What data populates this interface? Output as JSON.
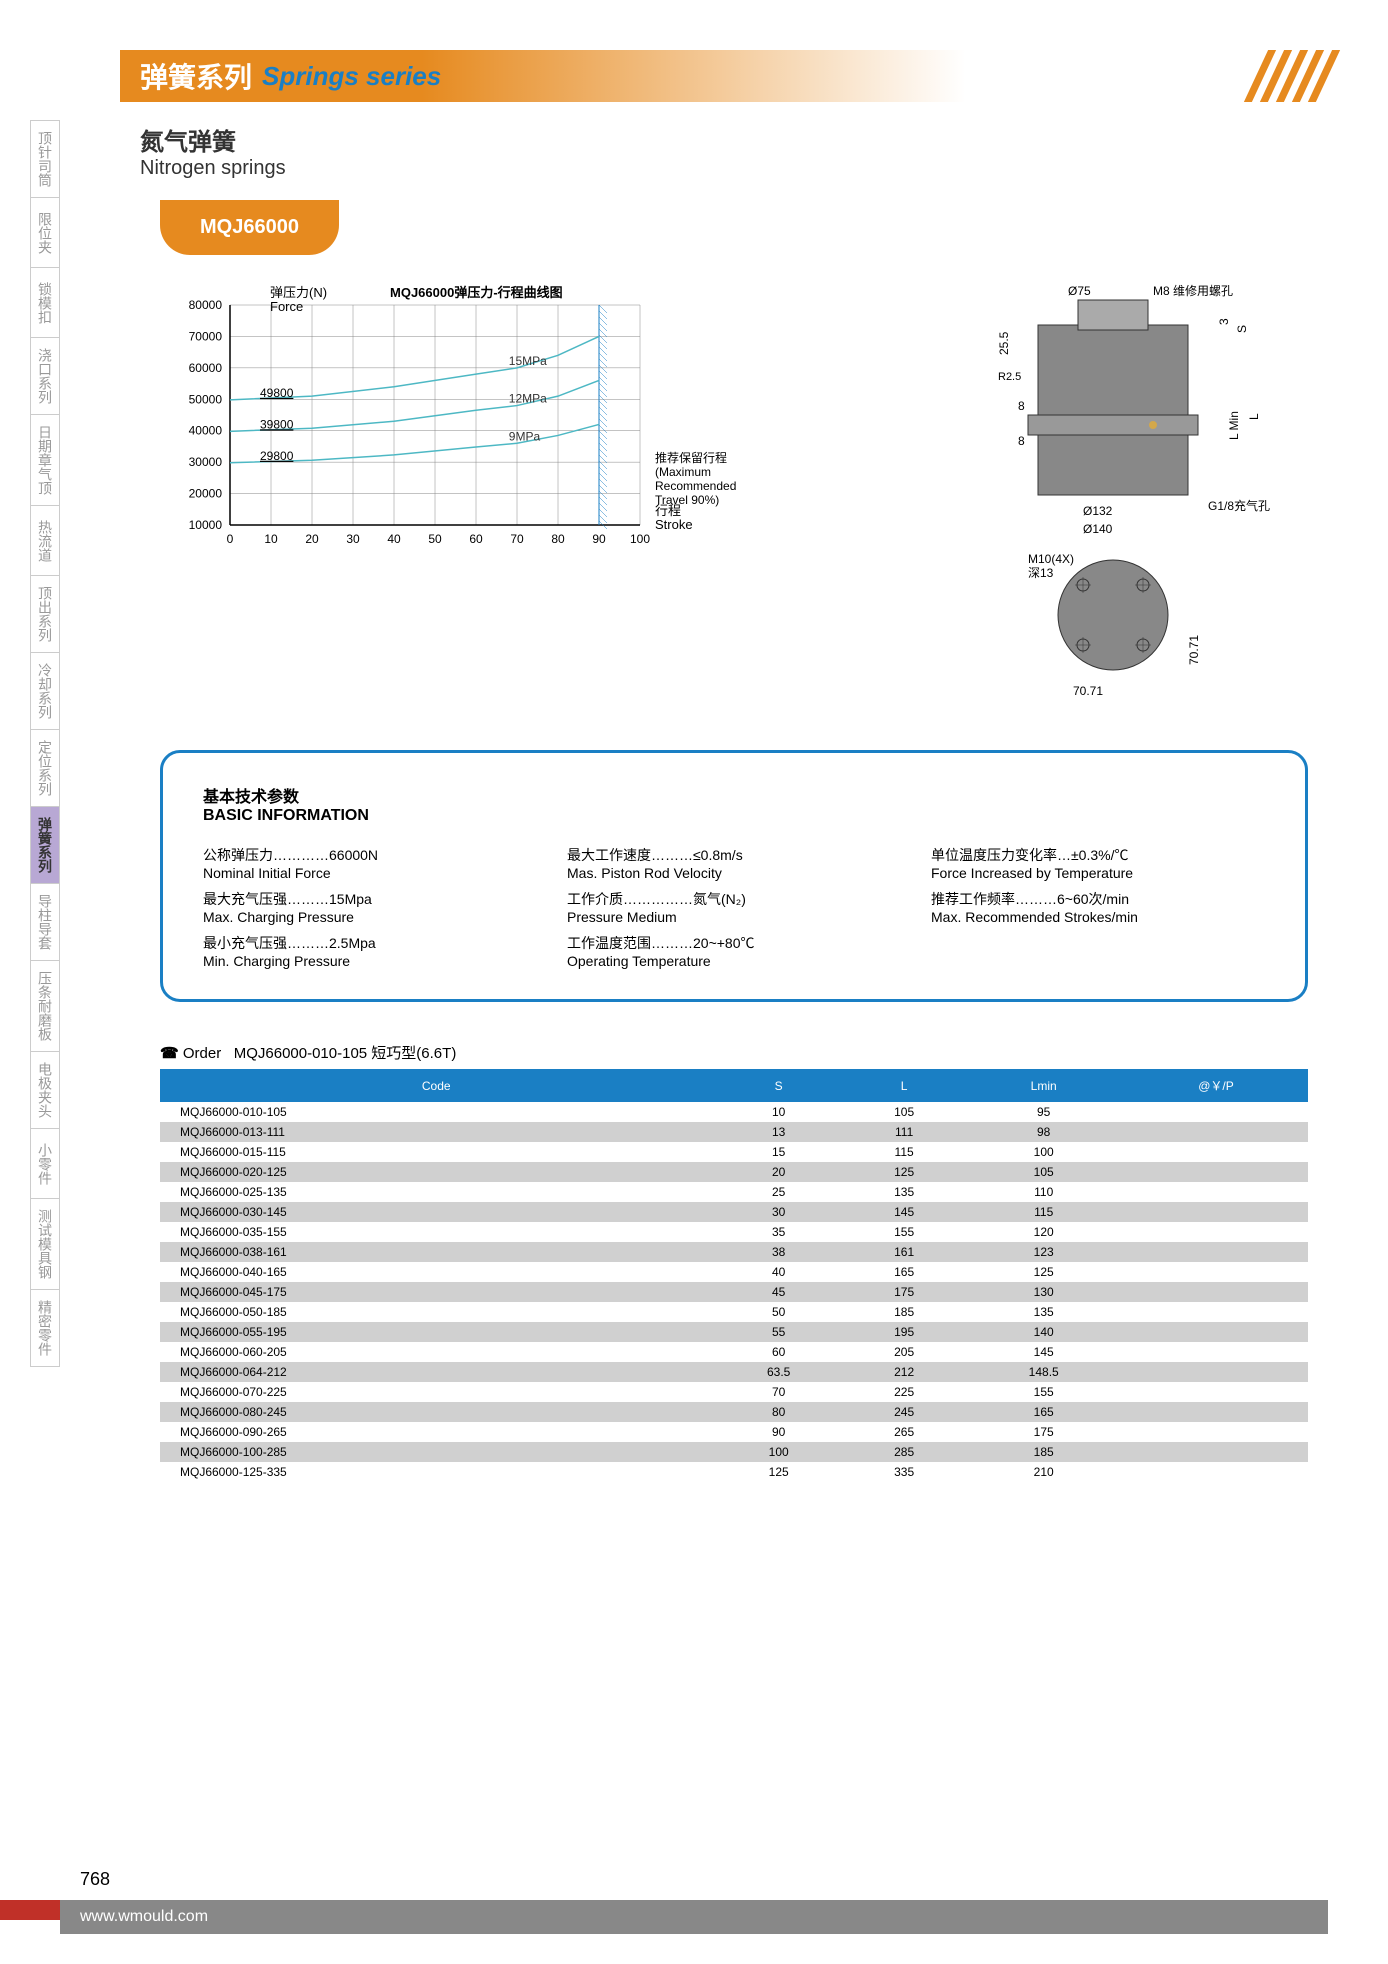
{
  "header": {
    "title_zh": "弹簧系列",
    "title_en": "Springs series"
  },
  "sidebar": {
    "items": [
      {
        "zh": "顶针司筒"
      },
      {
        "zh": "限位夹"
      },
      {
        "zh": "锁模扣"
      },
      {
        "zh": "浇口系列"
      },
      {
        "zh": "日期章气顶"
      },
      {
        "zh": "热流道"
      },
      {
        "zh": "顶出系列"
      },
      {
        "zh": "冷却系列"
      },
      {
        "zh": "定位系列"
      },
      {
        "zh": "弹簧系列",
        "active": true
      },
      {
        "zh": "导柱导套"
      },
      {
        "zh": "压条耐磨板"
      },
      {
        "zh": "电极夹头"
      },
      {
        "zh": "小零件"
      },
      {
        "zh": "测试模具钢"
      },
      {
        "zh": "精密零件"
      }
    ]
  },
  "product": {
    "title_zh": "氮气弹簧",
    "title_en": "Nitrogen springs",
    "model": "MQJ66000"
  },
  "chart": {
    "type": "line",
    "title": "MQJ66000弹压力-行程曲线图",
    "ylabel_zh": "弹压力(N)",
    "ylabel_en": "Force",
    "xlabel_zh": "行程",
    "xlabel_en": "Stroke",
    "annotation_zh": "推荐保留行程",
    "annotation_en1": "(Maximum",
    "annotation_en2": "Recommended",
    "annotation_en3": "Travel 90%)",
    "xlim": [
      0,
      100
    ],
    "ylim": [
      10000,
      80000
    ],
    "xtick_step": 10,
    "ytick_step": 10000,
    "xticks": [
      0,
      10,
      20,
      30,
      40,
      50,
      60,
      70,
      80,
      90,
      100
    ],
    "yticks": [
      10000,
      20000,
      30000,
      40000,
      50000,
      60000,
      70000,
      80000
    ],
    "series": [
      {
        "label": "15MPa",
        "start": 49800,
        "color": "#4db8c4",
        "data": [
          [
            0,
            49800
          ],
          [
            20,
            51000
          ],
          [
            40,
            54000
          ],
          [
            60,
            58000
          ],
          [
            70,
            60000
          ],
          [
            80,
            64000
          ],
          [
            90,
            70000
          ]
        ]
      },
      {
        "label": "12MPa",
        "start": 39800,
        "color": "#4db8c4",
        "data": [
          [
            0,
            39800
          ],
          [
            20,
            40800
          ],
          [
            40,
            43000
          ],
          [
            60,
            46500
          ],
          [
            70,
            48000
          ],
          [
            80,
            51000
          ],
          [
            90,
            56000
          ]
        ]
      },
      {
        "label": "9MPa",
        "start": 29800,
        "color": "#4db8c4",
        "data": [
          [
            0,
            29800
          ],
          [
            20,
            30600
          ],
          [
            40,
            32300
          ],
          [
            60,
            34800
          ],
          [
            70,
            36000
          ],
          [
            80,
            38500
          ],
          [
            90,
            42000
          ]
        ]
      }
    ],
    "series_labels": [
      {
        "text": "49800",
        "y": 49800
      },
      {
        "text": "39800",
        "y": 39800
      },
      {
        "text": "29800",
        "y": 29800
      }
    ],
    "line_labels": [
      {
        "text": "15MPa",
        "x": 70,
        "y_offset": -5
      },
      {
        "text": "12MPa",
        "x": 70,
        "y_offset": -5
      },
      {
        "text": "9MPa",
        "x": 70,
        "y_offset": -5
      }
    ],
    "shaded_x": 90,
    "grid_color": "#888",
    "line_color": "#4db8c4",
    "background_color": "#ffffff"
  },
  "diagram": {
    "labels": {
      "d75": "Ø75",
      "m8": "M8 维修用螺孔",
      "h255": "25.5",
      "r25": "R2.5",
      "h8a": "8",
      "h8b": "8",
      "d132": "Ø132",
      "d140": "Ø140",
      "g18": "G1/8充气孔",
      "s": "S",
      "h3": "3",
      "lmin": "L Min",
      "l": "L",
      "m10": "M10(4X)",
      "depth": "深13",
      "w7071a": "70.71",
      "w7071b": "70.71"
    }
  },
  "info": {
    "title_zh": "基本技术参数",
    "title_en": "BASIC INFORMATION",
    "items": [
      {
        "zh": "公称弹压力…………66000N",
        "en": "Nominal Initial Force"
      },
      {
        "zh": "最大工作速度………≤0.8m/s",
        "en": "Mas. Piston Rod Velocity"
      },
      {
        "zh": "单位温度压力变化率…±0.3%/℃",
        "en": "Force Increased by Temperature"
      },
      {
        "zh": "最大充气压强………15Mpa",
        "en": "Max. Charging Pressure"
      },
      {
        "zh": "工作介质……………氮气(N₂)",
        "en": "Pressure Medium"
      },
      {
        "zh": "推荐工作频率………6~60次/min",
        "en": "Max. Recommended Strokes/min"
      },
      {
        "zh": "最小充气压强………2.5Mpa",
        "en": "Min. Charging Pressure"
      },
      {
        "zh": "工作温度范围………20~+80℃",
        "en": "Operating Temperature"
      },
      {
        "zh": "",
        "en": ""
      }
    ]
  },
  "order": {
    "label": "Order",
    "example": "MQJ66000-010-105  短巧型(6.6T)",
    "columns": [
      "Code",
      "S",
      "L",
      "Lmin",
      "@￥/P"
    ],
    "rows": [
      [
        "MQJ66000-010-105",
        "10",
        "105",
        "95",
        ""
      ],
      [
        "MQJ66000-013-111",
        "13",
        "111",
        "98",
        ""
      ],
      [
        "MQJ66000-015-115",
        "15",
        "115",
        "100",
        ""
      ],
      [
        "MQJ66000-020-125",
        "20",
        "125",
        "105",
        ""
      ],
      [
        "MQJ66000-025-135",
        "25",
        "135",
        "110",
        ""
      ],
      [
        "MQJ66000-030-145",
        "30",
        "145",
        "115",
        ""
      ],
      [
        "MQJ66000-035-155",
        "35",
        "155",
        "120",
        ""
      ],
      [
        "MQJ66000-038-161",
        "38",
        "161",
        "123",
        ""
      ],
      [
        "MQJ66000-040-165",
        "40",
        "165",
        "125",
        ""
      ],
      [
        "MQJ66000-045-175",
        "45",
        "175",
        "130",
        ""
      ],
      [
        "MQJ66000-050-185",
        "50",
        "185",
        "135",
        ""
      ],
      [
        "MQJ66000-055-195",
        "55",
        "195",
        "140",
        ""
      ],
      [
        "MQJ66000-060-205",
        "60",
        "205",
        "145",
        ""
      ],
      [
        "MQJ66000-064-212",
        "63.5",
        "212",
        "148.5",
        ""
      ],
      [
        "MQJ66000-070-225",
        "70",
        "225",
        "155",
        ""
      ],
      [
        "MQJ66000-080-245",
        "80",
        "245",
        "165",
        ""
      ],
      [
        "MQJ66000-090-265",
        "90",
        "265",
        "175",
        ""
      ],
      [
        "MQJ66000-100-285",
        "100",
        "285",
        "185",
        ""
      ],
      [
        "MQJ66000-125-335",
        "125",
        "335",
        "210",
        ""
      ]
    ]
  },
  "footer": {
    "page": "768",
    "url": "www.wmould.com"
  }
}
